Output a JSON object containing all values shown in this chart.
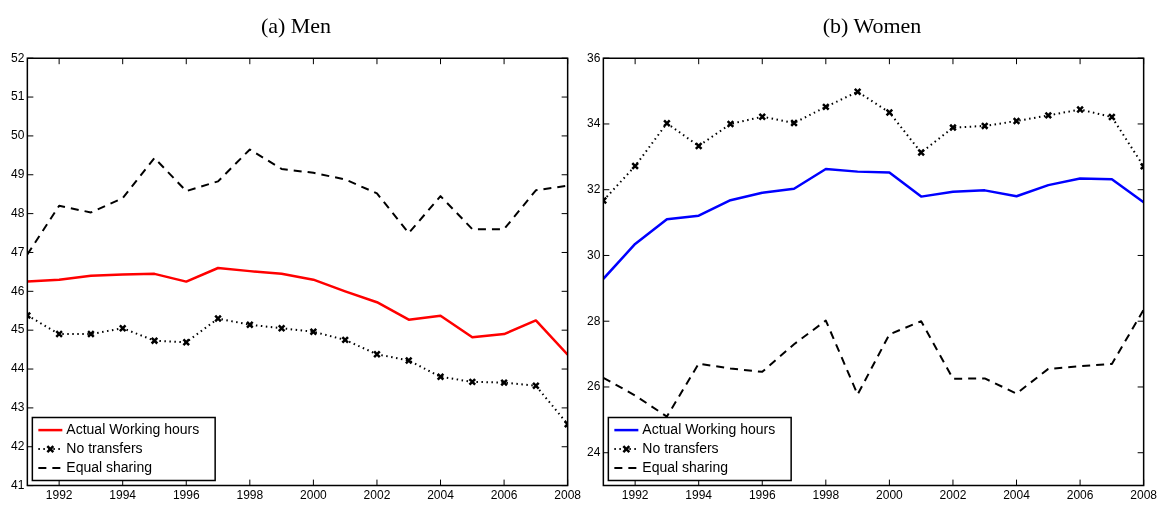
{
  "chart_data": [
    {
      "type": "line",
      "title": "(a) Men",
      "x": [
        1991,
        1992,
        1993,
        1994,
        1995,
        1996,
        1997,
        1998,
        1999,
        2000,
        2001,
        2002,
        2003,
        2004,
        2005,
        2006,
        2007,
        2008
      ],
      "xlim": [
        1991,
        2008
      ],
      "xticks": [
        1992,
        1994,
        1996,
        1998,
        2000,
        2002,
        2004,
        2006,
        2008
      ],
      "ylim": [
        41,
        52
      ],
      "yticks": [
        41,
        42,
        43,
        44,
        45,
        46,
        47,
        48,
        49,
        50,
        51,
        52
      ],
      "grid": false,
      "legend": "bottom left",
      "series": [
        {
          "name": "Actual Working hours",
          "color": "#ff0000",
          "line_style": "solid",
          "marker": "none",
          "values": [
            46.25,
            46.3,
            46.4,
            46.43,
            46.45,
            46.25,
            46.6,
            46.52,
            46.45,
            46.3,
            46.0,
            45.72,
            45.27,
            45.37,
            44.82,
            44.9,
            45.25,
            44.37
          ]
        },
        {
          "name": "No transfers",
          "color": "#000000",
          "line_style": "dotted",
          "marker": "cross",
          "values": [
            45.38,
            44.9,
            44.9,
            45.05,
            44.73,
            44.69,
            45.3,
            45.14,
            45.05,
            44.96,
            44.75,
            44.38,
            44.22,
            43.8,
            43.67,
            43.65,
            43.57,
            42.58
          ]
        },
        {
          "name": "Equal sharing",
          "color": "#000000",
          "line_style": "dashed",
          "marker": "none",
          "values": [
            46.95,
            48.2,
            48.03,
            48.4,
            49.43,
            48.58,
            48.83,
            49.65,
            49.15,
            49.05,
            48.88,
            48.52,
            47.5,
            48.45,
            47.6,
            47.6,
            48.6,
            48.72
          ]
        }
      ]
    },
    {
      "type": "line",
      "title": "(b) Women",
      "x": [
        1991,
        1992,
        1993,
        1994,
        1995,
        1996,
        1997,
        1998,
        1999,
        2000,
        2001,
        2002,
        2003,
        2004,
        2005,
        2006,
        2007,
        2008
      ],
      "xlim": [
        1991,
        2008
      ],
      "xticks": [
        1992,
        1994,
        1996,
        1998,
        2000,
        2002,
        2004,
        2006,
        2008
      ],
      "ylim": [
        23,
        36
      ],
      "yticks": [
        24,
        26,
        28,
        30,
        32,
        34,
        36
      ],
      "grid": false,
      "legend": "bottom left",
      "series": [
        {
          "name": "Actual Working hours",
          "color": "#0000ff",
          "line_style": "solid",
          "marker": "none",
          "values": [
            29.29,
            30.35,
            31.1,
            31.21,
            31.68,
            31.91,
            32.03,
            32.63,
            32.55,
            32.52,
            31.79,
            31.94,
            31.98,
            31.8,
            32.14,
            32.34,
            32.32,
            31.62
          ]
        },
        {
          "name": "No transfers",
          "color": "#000000",
          "line_style": "dotted",
          "marker": "cross",
          "values": [
            31.67,
            32.72,
            34.02,
            33.33,
            34.0,
            34.22,
            34.03,
            34.52,
            34.98,
            34.35,
            33.13,
            33.89,
            33.94,
            34.09,
            34.26,
            34.44,
            34.21,
            32.71
          ]
        },
        {
          "name": "Equal sharing",
          "color": "#000000",
          "line_style": "dashed",
          "marker": "none",
          "values": [
            26.28,
            25.74,
            25.1,
            26.71,
            26.56,
            26.46,
            27.3,
            28.02,
            25.77,
            27.6,
            28.0,
            26.25,
            26.26,
            25.8,
            26.55,
            26.63,
            26.7,
            28.35
          ]
        }
      ]
    }
  ]
}
